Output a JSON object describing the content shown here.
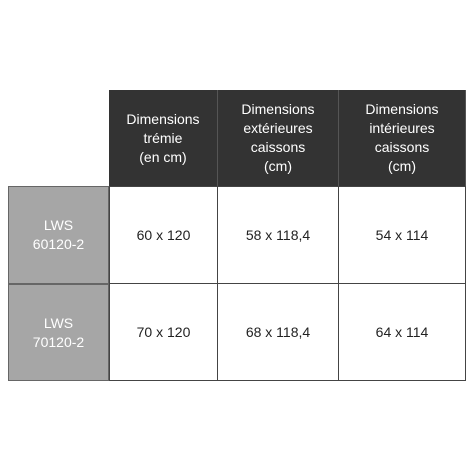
{
  "table": {
    "header": [
      [
        "Dimensions",
        "trémie",
        "(en cm)"
      ],
      [
        "Dimensions",
        "extérieures",
        "caissons",
        "(cm)"
      ],
      [
        "Dimensions",
        "intérieures",
        "caissons",
        "(cm)"
      ]
    ],
    "rows": [
      {
        "label": [
          "LWS",
          "60120-2"
        ],
        "cells": [
          "60 x 120",
          "58 x 118,4",
          "54 x 114"
        ]
      },
      {
        "label": [
          "LWS",
          "70120-2"
        ],
        "cells": [
          "70 x 120",
          "68 x 118,4",
          "64 x 114"
        ]
      }
    ]
  }
}
